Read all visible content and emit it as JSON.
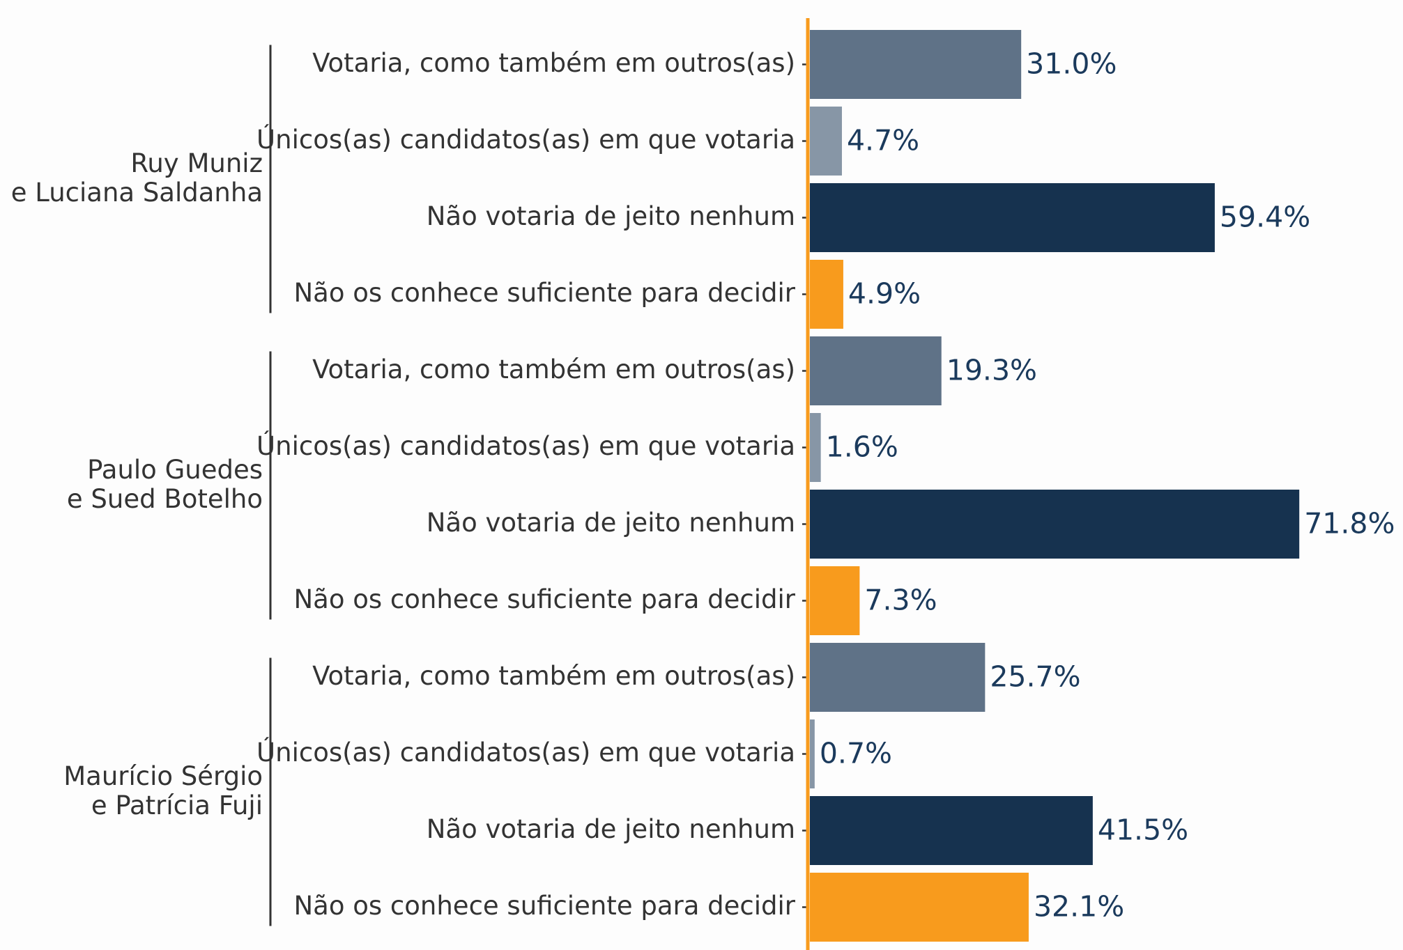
{
  "chart_data": {
    "type": "bar",
    "orientation": "horizontal",
    "categories": [
      "Votaria, como também em outros(as)",
      "Únicos(as) candidatos(as) em que votaria",
      "Não votaria de jeito nenhum",
      "Não os conhece suficiente para decidir"
    ],
    "colors": [
      "#5f7287",
      "#8796a6",
      "#16324f",
      "#f89b1d"
    ],
    "axis_color": "#f89b1d",
    "groups": [
      {
        "label": [
          "Ruy Muniz",
          "e Luciana Saldanha"
        ],
        "values": [
          31.0,
          4.7,
          59.4,
          4.9
        ],
        "value_labels": [
          "31.0%",
          "4.7%",
          "59.4%",
          "4.9%"
        ]
      },
      {
        "label": [
          "Paulo Guedes",
          "e Sued Botelho"
        ],
        "values": [
          19.3,
          1.6,
          71.8,
          7.3
        ],
        "value_labels": [
          "19.3%",
          "1.6%",
          "71.8%",
          "7.3%"
        ]
      },
      {
        "label": [
          "Maurício Sérgio",
          "e Patrícia Fuji"
        ],
        "values": [
          25.7,
          0.7,
          41.5,
          32.1
        ],
        "value_labels": [
          "25.7%",
          "0.7%",
          "41.5%",
          "32.1%"
        ]
      }
    ]
  }
}
